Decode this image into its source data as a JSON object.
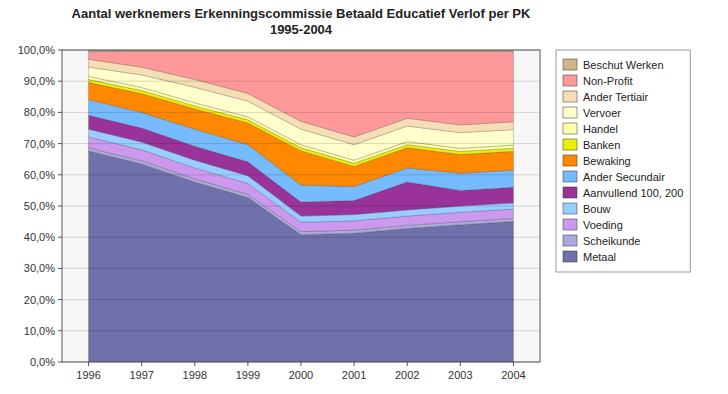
{
  "chart_data": {
    "type": "area",
    "title": "Aantal werknemers Erkenningscommissie Betaald Educatief Verlof per PK\n1995-2004",
    "x": [
      1996,
      1997,
      1998,
      1999,
      2000,
      2001,
      2002,
      2003,
      2004
    ],
    "xlim": [
      1995.5,
      2004.5
    ],
    "xticks": [
      1996,
      1997,
      1998,
      1999,
      2000,
      2001,
      2002,
      2003,
      2004
    ],
    "ylim": [
      0,
      100
    ],
    "yticks": [
      {
        "value": 0,
        "label": "0,0%"
      },
      {
        "value": 10,
        "label": "10,0%"
      },
      {
        "value": 20,
        "label": "20,0%"
      },
      {
        "value": 30,
        "label": "30,0%"
      },
      {
        "value": 40,
        "label": "40,0%"
      },
      {
        "value": 50,
        "label": "50,0%"
      },
      {
        "value": 60,
        "label": "60,0%"
      },
      {
        "value": 70,
        "label": "70,0%"
      },
      {
        "value": 80,
        "label": "80,0%"
      },
      {
        "value": 90,
        "label": "90,0%"
      },
      {
        "value": 100,
        "label": "100,0%"
      }
    ],
    "stacked": true,
    "grid": true,
    "legend": "right",
    "series": [
      {
        "name": "Metaal",
        "color": "#7070aa",
        "values": [
          67.6617,
          63.5,
          57.7114,
          52.7363,
          40.796,
          41.2935,
          42.7861,
          44,
          45
        ]
      },
      {
        "name": "Scheikunde",
        "color": "#aaaadd",
        "values": [
          0.995,
          1,
          0.995,
          0.995,
          0.995,
          0.995,
          0.995,
          1,
          1
        ]
      },
      {
        "name": "Voeding",
        "color": "#cc99ee",
        "values": [
          3.4826,
          3.5,
          3.4826,
          3.4826,
          2.9851,
          2.9851,
          2.9851,
          3,
          3
        ]
      },
      {
        "name": "Bouw",
        "color": "#99ccff",
        "values": [
          2.4876,
          2.5,
          2.4876,
          2.4876,
          1.99,
          1.99,
          1.99,
          2,
          2
        ]
      },
      {
        "name": "Aanvullend 100, 200",
        "color": "#993399",
        "values": [
          4.4776,
          4.5,
          4.4776,
          4.4776,
          4.4776,
          4.4776,
          8.9552,
          5,
          5
        ]
      },
      {
        "name": "Ander Secundair",
        "color": "#77bbff",
        "values": [
          4.9751,
          5,
          5.4726,
          5.4726,
          5.4726,
          4.4776,
          4.4776,
          5.5,
          5.5
        ]
      },
      {
        "name": "Bewaking",
        "color": "#ff8800",
        "values": [
          5.4726,
          6,
          6.4677,
          6.9652,
          10.9453,
          6.4677,
          6.4677,
          6,
          6
        ]
      },
      {
        "name": "Banken",
        "color": "#eeee00",
        "values": [
          0.995,
          1,
          0.995,
          0.995,
          0.995,
          0.995,
          0.995,
          1,
          1
        ]
      },
      {
        "name": "Handel",
        "color": "#ffffaa",
        "values": [
          0.995,
          1,
          0.995,
          0.995,
          0.995,
          0.995,
          0.995,
          1,
          1
        ]
      },
      {
        "name": "Vervoer",
        "color": "#ffffcc",
        "values": [
          2.9851,
          4,
          4.9751,
          4.9751,
          4.9751,
          4.9751,
          4.9751,
          5,
          5
        ]
      },
      {
        "name": "Ander Tertiair",
        "color": "#f5deb3",
        "values": [
          2.4876,
          2.5,
          2.4876,
          2.4876,
          2.4876,
          2.4876,
          2.4876,
          2.5,
          2.5
        ]
      },
      {
        "name": "Non-Profit",
        "color": "#ff9999",
        "values": [
          2.4876,
          5,
          8.9552,
          13.4328,
          22.3881,
          27.3632,
          21.393,
          23.5,
          22.5
        ]
      },
      {
        "name": "Beschut Werken",
        "color": "#d2b48c",
        "values": [
          0.4975,
          0.5,
          0.4975,
          0.4975,
          0.4975,
          0.4975,
          0.4975,
          0.5,
          0.5
        ]
      }
    ]
  }
}
